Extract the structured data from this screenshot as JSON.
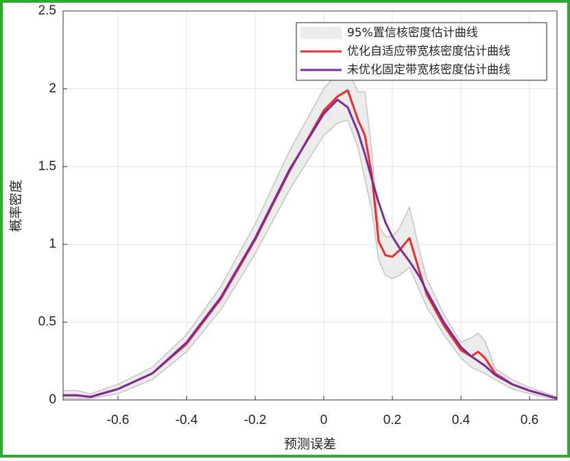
{
  "chart_data": {
    "type": "kde",
    "xlabel": "预测误差",
    "ylabel": "概率密度",
    "x": [
      -0.76,
      -0.72,
      -0.68,
      -0.6,
      -0.5,
      -0.4,
      -0.3,
      -0.2,
      -0.1,
      0,
      0.04,
      0.07,
      0.1,
      0.12,
      0.14,
      0.16,
      0.18,
      0.2,
      0.22,
      0.25,
      0.28,
      0.3,
      0.35,
      0.4,
      0.43,
      0.45,
      0.47,
      0.5,
      0.55,
      0.6,
      0.68
    ],
    "series": [
      {
        "name": "95%置信核密度估计曲线",
        "color": "#ececec",
        "upper": [
          0.06,
          0.06,
          0.04,
          0.1,
          0.21,
          0.42,
          0.73,
          1.13,
          1.6,
          2.0,
          2.1,
          2.12,
          1.98,
          1.98,
          1.6,
          1.12,
          1.05,
          1.05,
          1.1,
          1.24,
          0.95,
          0.78,
          0.55,
          0.37,
          0.4,
          0.43,
          0.38,
          0.2,
          0.13,
          0.08,
          0.02
        ],
        "lower": [
          0.01,
          0.01,
          0.01,
          0.04,
          0.13,
          0.31,
          0.58,
          0.94,
          1.35,
          1.7,
          1.78,
          1.8,
          1.62,
          1.42,
          1.22,
          0.9,
          0.8,
          0.78,
          0.8,
          0.85,
          0.7,
          0.6,
          0.42,
          0.27,
          0.21,
          0.19,
          0.17,
          0.13,
          0.07,
          0.04,
          0.0
        ]
      },
      {
        "name": "优化自适应带宽核密度估计曲线",
        "color": "#ee2a2a",
        "values": [
          0.03,
          0.03,
          0.02,
          0.07,
          0.17,
          0.36,
          0.65,
          1.03,
          1.47,
          1.86,
          1.95,
          1.99,
          1.8,
          1.7,
          1.45,
          1.02,
          0.93,
          0.92,
          0.96,
          1.04,
          0.82,
          0.68,
          0.48,
          0.32,
          0.28,
          0.31,
          0.27,
          0.17,
          0.1,
          0.06,
          0.01
        ]
      },
      {
        "name": "未优化固定带宽核密度估计曲线",
        "color": "#7b2a9a",
        "values": [
          0.03,
          0.03,
          0.02,
          0.07,
          0.17,
          0.37,
          0.66,
          1.04,
          1.48,
          1.84,
          1.93,
          1.88,
          1.72,
          1.58,
          1.42,
          1.27,
          1.14,
          1.05,
          0.98,
          0.89,
          0.79,
          0.7,
          0.5,
          0.34,
          0.28,
          0.25,
          0.22,
          0.16,
          0.1,
          0.06,
          0.01
        ]
      }
    ],
    "xlim": [
      -0.76,
      0.68
    ],
    "xticks": [
      -0.6,
      -0.4,
      -0.2,
      0,
      0.2,
      0.4,
      0.6
    ],
    "ylim": [
      0,
      2.5
    ],
    "yticks": [
      0,
      0.5,
      1,
      1.5,
      2,
      2.5
    ],
    "grid": true,
    "legend": "top-right"
  }
}
